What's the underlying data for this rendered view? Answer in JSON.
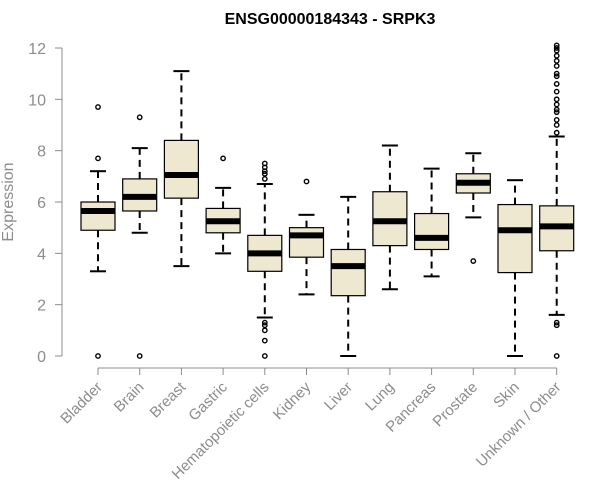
{
  "chart_data": {
    "type": "boxplot",
    "title": "ENSG00000184343 - SRPK3",
    "xlabel": "",
    "ylabel": "Expression",
    "ylim": [
      0,
      12
    ],
    "yticks": [
      0,
      2,
      4,
      6,
      8,
      10,
      12
    ],
    "grid": false,
    "colors": {
      "box_fill": "#efe8d0",
      "box_stroke": "#000000",
      "axis": "#8c8c8c"
    },
    "categories": [
      "Bladder",
      "Brain",
      "Breast",
      "Gastric",
      "Hematopoietic cells",
      "Kidney",
      "Liver",
      "Lung",
      "Pancreas",
      "Prostate",
      "Skin",
      "Unknown / Other"
    ],
    "boxes": [
      {
        "name": "Bladder",
        "whisker_low": 3.3,
        "q1": 4.9,
        "median": 5.65,
        "q3": 6.0,
        "whisker_high": 7.2,
        "outliers": [
          0.0,
          7.7,
          9.7
        ]
      },
      {
        "name": "Brain",
        "whisker_low": 4.8,
        "q1": 5.65,
        "median": 6.2,
        "q3": 6.9,
        "whisker_high": 8.1,
        "outliers": [
          0.0,
          9.3
        ]
      },
      {
        "name": "Breast",
        "whisker_low": 3.5,
        "q1": 6.15,
        "median": 7.05,
        "q3": 8.4,
        "whisker_high": 11.1,
        "outliers": []
      },
      {
        "name": "Gastric",
        "whisker_low": 4.0,
        "q1": 4.8,
        "median": 5.25,
        "q3": 5.75,
        "whisker_high": 6.55,
        "outliers": [
          7.7
        ]
      },
      {
        "name": "Hematopoietic cells",
        "whisker_low": 1.5,
        "q1": 3.3,
        "median": 4.0,
        "q3": 4.7,
        "whisker_high": 6.7,
        "outliers": [
          0.0,
          0.6,
          1.0,
          1.2,
          1.3,
          6.9,
          7.1,
          7.2,
          7.35,
          7.5
        ]
      },
      {
        "name": "Kidney",
        "whisker_low": 2.4,
        "q1": 3.85,
        "median": 4.7,
        "q3": 5.0,
        "whisker_high": 5.5,
        "outliers": [
          6.8
        ]
      },
      {
        "name": "Liver",
        "whisker_low": 0.0,
        "q1": 2.35,
        "median": 3.5,
        "q3": 4.15,
        "whisker_high": 6.2,
        "outliers": []
      },
      {
        "name": "Lung",
        "whisker_low": 2.6,
        "q1": 4.3,
        "median": 5.25,
        "q3": 6.4,
        "whisker_high": 8.2,
        "outliers": []
      },
      {
        "name": "Pancreas",
        "whisker_low": 3.1,
        "q1": 4.15,
        "median": 4.6,
        "q3": 5.55,
        "whisker_high": 7.3,
        "outliers": []
      },
      {
        "name": "Prostate",
        "whisker_low": 5.4,
        "q1": 6.35,
        "median": 6.75,
        "q3": 7.1,
        "whisker_high": 7.9,
        "outliers": [
          3.7
        ]
      },
      {
        "name": "Skin",
        "whisker_low": 0.0,
        "q1": 3.25,
        "median": 4.9,
        "q3": 5.9,
        "whisker_high": 6.85,
        "outliers": []
      },
      {
        "name": "Unknown / Other",
        "whisker_low": 1.6,
        "q1": 4.1,
        "median": 5.05,
        "q3": 5.85,
        "whisker_high": 8.55,
        "outliers": [
          0.0,
          1.2,
          1.3,
          8.7,
          9.0,
          9.2,
          9.5,
          9.6,
          9.8,
          10.0,
          10.3,
          10.6,
          10.9,
          11.0,
          11.3,
          11.5,
          11.7,
          11.9,
          12.0,
          12.1
        ]
      }
    ]
  }
}
